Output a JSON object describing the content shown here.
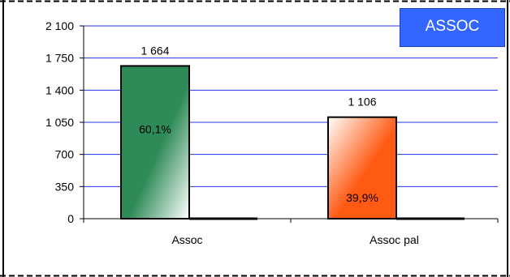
{
  "badge": {
    "label": "ASSOC",
    "background": "#3366ff"
  },
  "chart_data": {
    "type": "bar",
    "title": "",
    "xlabel": "",
    "ylabel": "",
    "ylim": [
      0,
      2100
    ],
    "y_ticks": [
      "0",
      "350",
      "700",
      "1 050",
      "1 400",
      "1 750",
      "2 100"
    ],
    "grid": true,
    "categories": [
      "Assoc",
      "Assoc pal"
    ],
    "values": [
      1664,
      1106
    ],
    "value_labels": [
      "1 664",
      "1 106"
    ],
    "percent_labels": [
      "60,1%",
      "39,9%"
    ],
    "colors": [
      "#2e8b57",
      "#ff5a14"
    ]
  }
}
